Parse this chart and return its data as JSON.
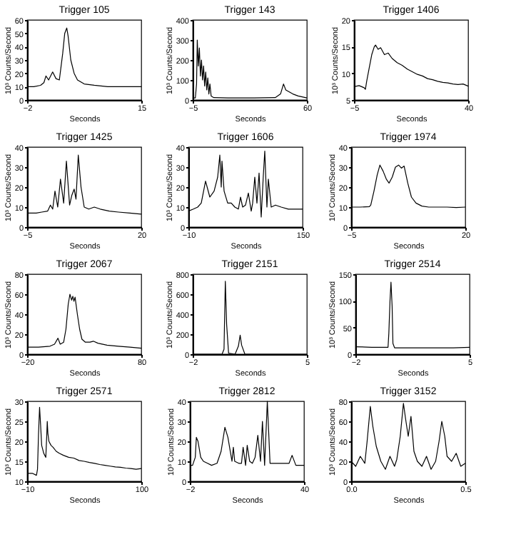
{
  "chart_data": [
    {
      "type": "line",
      "title": "Trigger 105",
      "xlabel": "Seconds",
      "ylabel": "10³ Counts/Second",
      "xlim": [
        -2,
        15
      ],
      "xticks": [
        -2,
        15
      ],
      "ylim": [
        0,
        60
      ],
      "yticks": [
        0,
        10,
        20,
        30,
        40,
        50,
        60
      ],
      "series": [
        {
          "color": "#000000",
          "x": [
            -2,
            -1,
            0,
            0.5,
            0.8,
            1.2,
            1.8,
            2.3,
            2.8,
            3.3,
            3.6,
            3.9,
            4.1,
            4.5,
            5,
            5.5,
            6.5,
            8,
            10,
            12,
            15
          ],
          "values": [
            10,
            10,
            11,
            13,
            18,
            15,
            21,
            16,
            15,
            35,
            50,
            54,
            48,
            30,
            20,
            15,
            12,
            11,
            10,
            10,
            10
          ]
        }
      ]
    },
    {
      "type": "line",
      "title": "Trigger 143",
      "xlabel": "Seconds",
      "ylabel": "10³ Counts/Second",
      "xlim": [
        -5,
        60
      ],
      "xticks": [
        -5,
        60
      ],
      "ylim": [
        0,
        400
      ],
      "yticks": [
        0,
        100,
        200,
        300,
        400
      ],
      "series": [
        {
          "color": "#000000",
          "x": [
            -5,
            -3.5,
            -2.8,
            -2.4,
            -1.8,
            -1.2,
            -0.6,
            0,
            0.6,
            1.2,
            1.8,
            2.4,
            3,
            3.6,
            4.2,
            4.8,
            5.5,
            7,
            15,
            30,
            42,
            45,
            46.7,
            48,
            50,
            52,
            55,
            60
          ],
          "values": [
            10,
            10,
            80,
            300,
            170,
            260,
            120,
            200,
            100,
            170,
            70,
            140,
            50,
            110,
            30,
            80,
            20,
            12,
            10,
            10,
            12,
            30,
            80,
            50,
            40,
            30,
            20,
            10
          ]
        }
      ]
    },
    {
      "type": "line",
      "title": "Trigger 1406",
      "xlabel": "Seconds",
      "ylabel": "10³ Counts/Second",
      "xlim": [
        -5,
        40
      ],
      "xticks": [
        -5,
        40
      ],
      "ylim": [
        5,
        20
      ],
      "yticks": [
        5,
        10,
        15,
        20
      ],
      "series": [
        {
          "color": "#000000",
          "x": [
            -5,
            -3,
            -1,
            -0.5,
            0,
            1,
            2,
            3,
            3.5,
            4.5,
            5.5,
            7,
            8.5,
            10,
            12,
            14,
            16,
            18,
            20,
            22,
            24,
            26,
            28,
            30,
            32,
            34,
            36,
            38,
            40
          ],
          "values": [
            7.5,
            7.7,
            7.3,
            7,
            8.5,
            11,
            13.5,
            15,
            15.3,
            14.5,
            14.8,
            13.5,
            13.8,
            12.8,
            12,
            11.5,
            10.8,
            10.3,
            9.8,
            9.5,
            9,
            8.8,
            8.5,
            8.3,
            8.2,
            8,
            7.9,
            8,
            7.6
          ]
        }
      ]
    },
    {
      "type": "line",
      "title": "Trigger 1425",
      "xlabel": "Seconds",
      "ylabel": "10³ Counts/Second",
      "xlim": [
        -5,
        20
      ],
      "xticks": [
        -5,
        20
      ],
      "ylim": [
        0,
        40
      ],
      "yticks": [
        0,
        10,
        20,
        30,
        40
      ],
      "series": [
        {
          "color": "#000000",
          "x": [
            -5,
            -3,
            -1.8,
            -0.5,
            0.1,
            0.6,
            1.1,
            1.7,
            2.3,
            3,
            3.6,
            4.3,
            4.8,
            5.3,
            5.7,
            6.2,
            6.8,
            7.5,
            8.5,
            9.7,
            11,
            13,
            15,
            17.5,
            20
          ],
          "values": [
            7,
            7,
            7.5,
            8,
            11,
            9,
            18,
            10,
            24,
            12,
            33,
            11,
            16,
            19,
            14,
            36,
            20,
            10,
            9,
            10,
            9,
            8,
            7.5,
            7,
            6.5
          ]
        }
      ]
    },
    {
      "type": "line",
      "title": "Trigger 1606",
      "xlabel": "Seconds",
      "ylabel": "10³ Counts/Second",
      "xlim": [
        -10,
        150
      ],
      "xticks": [
        -10,
        150
      ],
      "ylim": [
        0,
        40
      ],
      "yticks": [
        0,
        10,
        20,
        30,
        40
      ],
      "series": [
        {
          "color": "#000000",
          "x": [
            -10,
            -3,
            3,
            8,
            14,
            20,
            26,
            31,
            34,
            36,
            37,
            40,
            45,
            50,
            55,
            60,
            63,
            66,
            70,
            74,
            78,
            80,
            83,
            86,
            89,
            92,
            95,
            97,
            100,
            102,
            106,
            112,
            120,
            130,
            140,
            150
          ],
          "values": [
            8,
            9,
            10,
            12,
            23,
            15,
            18,
            25,
            36,
            20,
            33,
            18,
            12,
            12,
            10,
            9,
            15,
            10,
            11,
            17,
            8,
            12,
            25,
            12,
            27,
            5,
            26,
            38,
            10,
            24,
            10,
            11,
            10,
            9,
            9,
            9
          ]
        }
      ]
    },
    {
      "type": "line",
      "title": "Trigger 1974",
      "xlabel": "Seconds",
      "ylabel": "10³ Counts/Second",
      "xlim": [
        -5,
        20
      ],
      "xticks": [
        -5,
        20
      ],
      "ylim": [
        0,
        40
      ],
      "yticks": [
        0,
        10,
        20,
        30,
        40
      ],
      "series": [
        {
          "color": "#000000",
          "x": [
            -5,
            -3,
            -1,
            -0.7,
            0,
            0.7,
            1.3,
            2,
            2.7,
            3.3,
            4,
            4.7,
            5.4,
            6,
            6.6,
            7.4,
            8.2,
            9.2,
            10.5,
            12,
            14,
            16,
            18,
            20
          ],
          "values": [
            10,
            10,
            10.2,
            11,
            18,
            26,
            31,
            28,
            24,
            22,
            25,
            30,
            31,
            29.5,
            30.5,
            22,
            15,
            12,
            10.5,
            10,
            10,
            10,
            9.8,
            10
          ]
        }
      ]
    },
    {
      "type": "line",
      "title": "Trigger 2067",
      "xlabel": "Seconds",
      "ylabel": "10³ Counts/Second",
      "xlim": [
        -20,
        80
      ],
      "xticks": [
        -20,
        80
      ],
      "ylim": [
        0,
        80
      ],
      "yticks": [
        0,
        20,
        40,
        60,
        80
      ],
      "series": [
        {
          "color": "#000000",
          "x": [
            -20,
            -10,
            0,
            4,
            7,
            9,
            12,
            14,
            16,
            17.5,
            19,
            20,
            21,
            22,
            24,
            26,
            28,
            31,
            35,
            38,
            42,
            50,
            60,
            70,
            80
          ],
          "values": [
            7,
            7,
            8,
            10,
            16,
            10,
            12,
            25,
            50,
            60,
            54,
            58,
            53,
            57,
            40,
            25,
            15,
            12,
            12,
            13,
            11,
            9,
            8,
            7,
            6
          ]
        }
      ]
    },
    {
      "type": "line",
      "title": "Trigger 2151",
      "xlabel": "Seconds",
      "ylabel": "10³ Counts/Second",
      "xlim": [
        -2,
        5
      ],
      "xticks": [
        -2,
        5
      ],
      "ylim": [
        0,
        800
      ],
      "yticks": [
        0,
        200,
        400,
        600,
        800
      ],
      "series": [
        {
          "color": "#000000",
          "x": [
            -2,
            -1,
            -0.2,
            -0.08,
            0,
            0.08,
            0.2,
            0.6,
            0.8,
            0.91,
            1.0,
            1.2,
            2,
            3,
            5
          ],
          "values": [
            0,
            0,
            0,
            50,
            730,
            300,
            10,
            0,
            80,
            190,
            90,
            0,
            0,
            0,
            0
          ]
        }
      ]
    },
    {
      "type": "line",
      "title": "Trigger 2514",
      "xlabel": "Seconds",
      "ylabel": "10³ Counts/Second",
      "xlim": [
        -2,
        5
      ],
      "xticks": [
        -2,
        5
      ],
      "ylim": [
        0,
        150
      ],
      "yticks": [
        0,
        50,
        100,
        150
      ],
      "series": [
        {
          "color": "#000000",
          "x": [
            -2,
            -1,
            0,
            0.05,
            0.12,
            0.18,
            0.25,
            0.3,
            0.4,
            1,
            2,
            3,
            4,
            5
          ],
          "values": [
            14,
            13,
            13,
            40,
            100,
            135,
            90,
            20,
            12,
            12,
            12,
            12,
            12,
            13
          ]
        }
      ]
    },
    {
      "type": "line",
      "title": "Trigger 2571",
      "xlabel": "Seconds",
      "ylabel": "10³ Counts/Second",
      "xlim": [
        -10,
        100
      ],
      "xticks": [
        -10,
        100
      ],
      "ylim": [
        10,
        30
      ],
      "yticks": [
        10,
        15,
        20,
        25,
        30
      ],
      "series": [
        {
          "color": "#000000",
          "x": [
            -10,
            -5,
            -1,
            0,
            1,
            2,
            3,
            4,
            5,
            6,
            7,
            8,
            9,
            9.4,
            10,
            11,
            13,
            15,
            18,
            21,
            25,
            30,
            35,
            40,
            45,
            50,
            55,
            60,
            65,
            70,
            75,
            80,
            85,
            90,
            95,
            100
          ],
          "values": [
            12,
            12,
            11.5,
            13,
            22,
            28.5,
            24,
            19,
            18,
            17,
            16.5,
            16,
            22,
            25,
            22,
            20,
            19,
            18.5,
            17.5,
            17,
            16.5,
            16,
            15.8,
            15.2,
            15,
            14.7,
            14.5,
            14.2,
            14,
            13.8,
            13.6,
            13.5,
            13.3,
            13.2,
            13,
            13.2
          ]
        }
      ]
    },
    {
      "type": "line",
      "title": "Trigger 2812",
      "xlabel": "Seconds",
      "ylabel": "10³ Counts/Second",
      "xlim": [
        -2,
        40
      ],
      "xticks": [
        -2,
        40
      ],
      "ylim": [
        0,
        40
      ],
      "yticks": [
        0,
        10,
        20,
        30,
        40
      ],
      "series": [
        {
          "color": "#000000",
          "x": [
            -2,
            -1,
            0,
            0.4,
            1,
            2,
            3,
            4.5,
            6,
            8,
            9.5,
            10.9,
            12,
            13,
            13.5,
            14,
            14.5,
            16,
            17,
            17.6,
            18.5,
            19.1,
            20,
            21,
            22,
            23,
            24,
            24.7,
            25.5,
            26.5,
            27.5,
            30,
            33,
            34.5,
            35.6,
            37,
            40
          ],
          "values": [
            8,
            8,
            12,
            22,
            20,
            12,
            10,
            9,
            8,
            9,
            15,
            27,
            22,
            14,
            10,
            17,
            10,
            9,
            9,
            17,
            8,
            18,
            10,
            9,
            12,
            23,
            10,
            30,
            8,
            40,
            9,
            9,
            9,
            9,
            13,
            8,
            8
          ]
        }
      ]
    },
    {
      "type": "line",
      "title": "Trigger 3152",
      "xlabel": "Seconds",
      "ylabel": "10³ Counts/Second",
      "xlim": [
        0,
        0.5
      ],
      "xticks": [
        {
          "value": 0,
          "label": "0.0"
        },
        0.5
      ],
      "ylim": [
        0,
        80
      ],
      "yticks": [
        0,
        20,
        40,
        60,
        80
      ],
      "series": [
        {
          "color": "#000000",
          "x": [
            0,
            0.02,
            0.04,
            0.06,
            0.07,
            0.084,
            0.095,
            0.11,
            0.13,
            0.15,
            0.17,
            0.19,
            0.2,
            0.215,
            0.229,
            0.24,
            0.25,
            0.262,
            0.275,
            0.29,
            0.31,
            0.33,
            0.35,
            0.37,
            0.385,
            0.397,
            0.41,
            0.42,
            0.44,
            0.46,
            0.48,
            0.5
          ],
          "values": [
            20,
            15,
            25,
            18,
            40,
            75,
            55,
            35,
            20,
            12,
            25,
            15,
            22,
            45,
            78,
            60,
            45,
            65,
            30,
            20,
            15,
            25,
            12,
            20,
            40,
            60,
            45,
            25,
            20,
            28,
            15,
            18
          ]
        }
      ]
    }
  ]
}
